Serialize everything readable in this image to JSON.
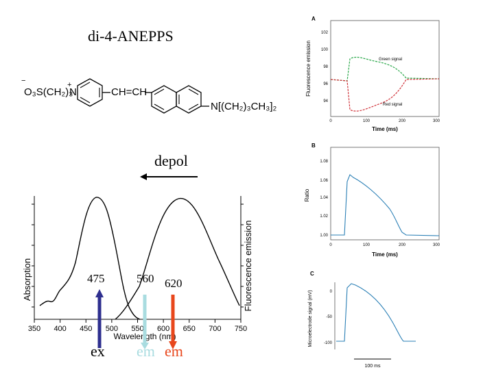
{
  "title": "di-4-ANEPPS",
  "structure": {
    "sulfonate": "O₃S(CH₂)₃",
    "charge_minus": "−",
    "charge_plus": "+",
    "n_ring": "N",
    "vinyl": "CH=CH",
    "amine": "N[(CH₂)₃CH₃]₂"
  },
  "depol_label": "depol",
  "spectrum": {
    "xlabel": "Wavelength (nm)",
    "ylabel_left": "Absorption",
    "ylabel_right": "Fluorescence emission",
    "x_ticks": [
      "350",
      "400",
      "450",
      "500",
      "550",
      "600",
      "650",
      "700",
      "750"
    ],
    "annotations": {
      "ex_wavelength": "475",
      "em1_wavelength": "560",
      "em2_wavelength": "620"
    },
    "arrow_labels": {
      "ex": "ex",
      "em1": "em",
      "em2": "em"
    },
    "colors": {
      "ex": "#2e2f8f",
      "em1": "#a9dce0",
      "em2": "#e8471c"
    }
  },
  "panels": {
    "A": {
      "letter": "A",
      "ylabel": "Fluorescence emission",
      "xlabel": "Time (ms)",
      "y_ticks": [
        "102",
        "100",
        "98",
        "96",
        "94"
      ],
      "x_ticks": [
        "0",
        "100",
        "200",
        "300"
      ],
      "green_label": "Green signal",
      "red_label": "Red signal",
      "green_color": "#2aa84a",
      "red_color": "#d0333a"
    },
    "B": {
      "letter": "B",
      "ylabel": "Ratio",
      "xlabel": "Time (ms)",
      "y_ticks": [
        "1.08",
        "1.06",
        "1.04",
        "1.02",
        "1.00"
      ],
      "x_ticks": [
        "0",
        "100",
        "200",
        "300"
      ],
      "trace_color": "#2a7fb5"
    },
    "C": {
      "letter": "C",
      "ylabel": "Microelectrode signal (mV)",
      "y_ticks": [
        "0",
        "-50",
        "-100"
      ],
      "scale_bar": "100 ms",
      "trace_color": "#2a7fb5"
    }
  }
}
